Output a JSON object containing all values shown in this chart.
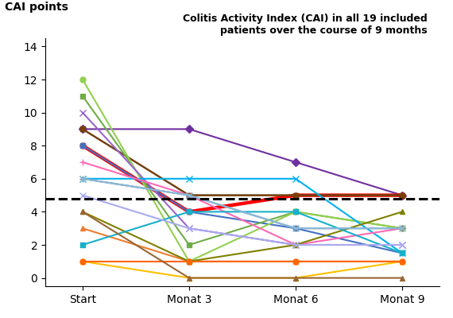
{
  "title_line1": "Colitis Activity Index (CAI) in all 19 included",
  "title_line2": "patients over the course of 9 months",
  "ylabel": "CAI points",
  "xtick_labels": [
    "Start",
    "Monat 3",
    "Monat 6",
    "Monat 9"
  ],
  "ylim": [
    -0.5,
    14.5
  ],
  "yticks": [
    0,
    2,
    4,
    6,
    8,
    10,
    12,
    14
  ],
  "dashed_line_y": 4.8,
  "series": [
    {
      "color": "#7030A0",
      "marker": "D",
      "values": [
        9,
        9,
        7,
        5
      ],
      "lw": 1.5,
      "ms": 5
    },
    {
      "color": "#FF0000",
      "marker": "o",
      "values": [
        8,
        4,
        5,
        5
      ],
      "lw": 3.2,
      "ms": 5
    },
    {
      "color": "#404040",
      "marker": "s",
      "values": [
        9,
        5,
        5,
        5
      ],
      "lw": 1.5,
      "ms": 5
    },
    {
      "color": "#7B3F00",
      "marker": "s",
      "values": [
        9,
        5,
        5,
        5
      ],
      "lw": 1.5,
      "ms": 5
    },
    {
      "color": "#4472C4",
      "marker": "s",
      "values": [
        8,
        4,
        3,
        1.5
      ],
      "lw": 1.5,
      "ms": 5
    },
    {
      "color": "#70AD47",
      "marker": "s",
      "values": [
        11,
        2,
        4,
        3
      ],
      "lw": 1.5,
      "ms": 5
    },
    {
      "color": "#92D050",
      "marker": "o",
      "values": [
        12,
        1,
        4,
        3
      ],
      "lw": 1.5,
      "ms": 5
    },
    {
      "color": "#9966CC",
      "marker": "x",
      "values": [
        10,
        3,
        2,
        2
      ],
      "lw": 1.5,
      "ms": 6
    },
    {
      "color": "#00B0F0",
      "marker": "x",
      "values": [
        6,
        6,
        6,
        1.5
      ],
      "lw": 1.5,
      "ms": 6
    },
    {
      "color": "#FF69B4",
      "marker": "+",
      "values": [
        7,
        5,
        2,
        3
      ],
      "lw": 1.5,
      "ms": 6
    },
    {
      "color": "#808080",
      "marker": "+",
      "values": [
        6,
        5,
        3,
        3
      ],
      "lw": 1.5,
      "ms": 6
    },
    {
      "color": "#ED7D31",
      "marker": "^",
      "values": [
        3,
        1,
        1,
        1
      ],
      "lw": 1.5,
      "ms": 5
    },
    {
      "color": "#808000",
      "marker": "^",
      "values": [
        4,
        1,
        2,
        4
      ],
      "lw": 1.5,
      "ms": 5
    },
    {
      "color": "#17B0CA",
      "marker": "s",
      "values": [
        2,
        4,
        4,
        1.5
      ],
      "lw": 1.5,
      "ms": 5
    },
    {
      "color": "#FFC000",
      "marker": "^",
      "values": [
        1,
        0,
        0,
        1
      ],
      "lw": 1.5,
      "ms": 5
    },
    {
      "color": "#FF6600",
      "marker": "o",
      "values": [
        1,
        1,
        1,
        1
      ],
      "lw": 1.5,
      "ms": 5
    },
    {
      "color": "#AAAAEE",
      "marker": "x",
      "values": [
        5,
        3,
        2,
        2
      ],
      "lw": 1.5,
      "ms": 6
    },
    {
      "color": "#996633",
      "marker": "^",
      "values": [
        4,
        0,
        0,
        0
      ],
      "lw": 1.5,
      "ms": 5
    },
    {
      "color": "#88BBDD",
      "marker": "x",
      "values": [
        6,
        5,
        3,
        3
      ],
      "lw": 1.5,
      "ms": 6
    }
  ]
}
